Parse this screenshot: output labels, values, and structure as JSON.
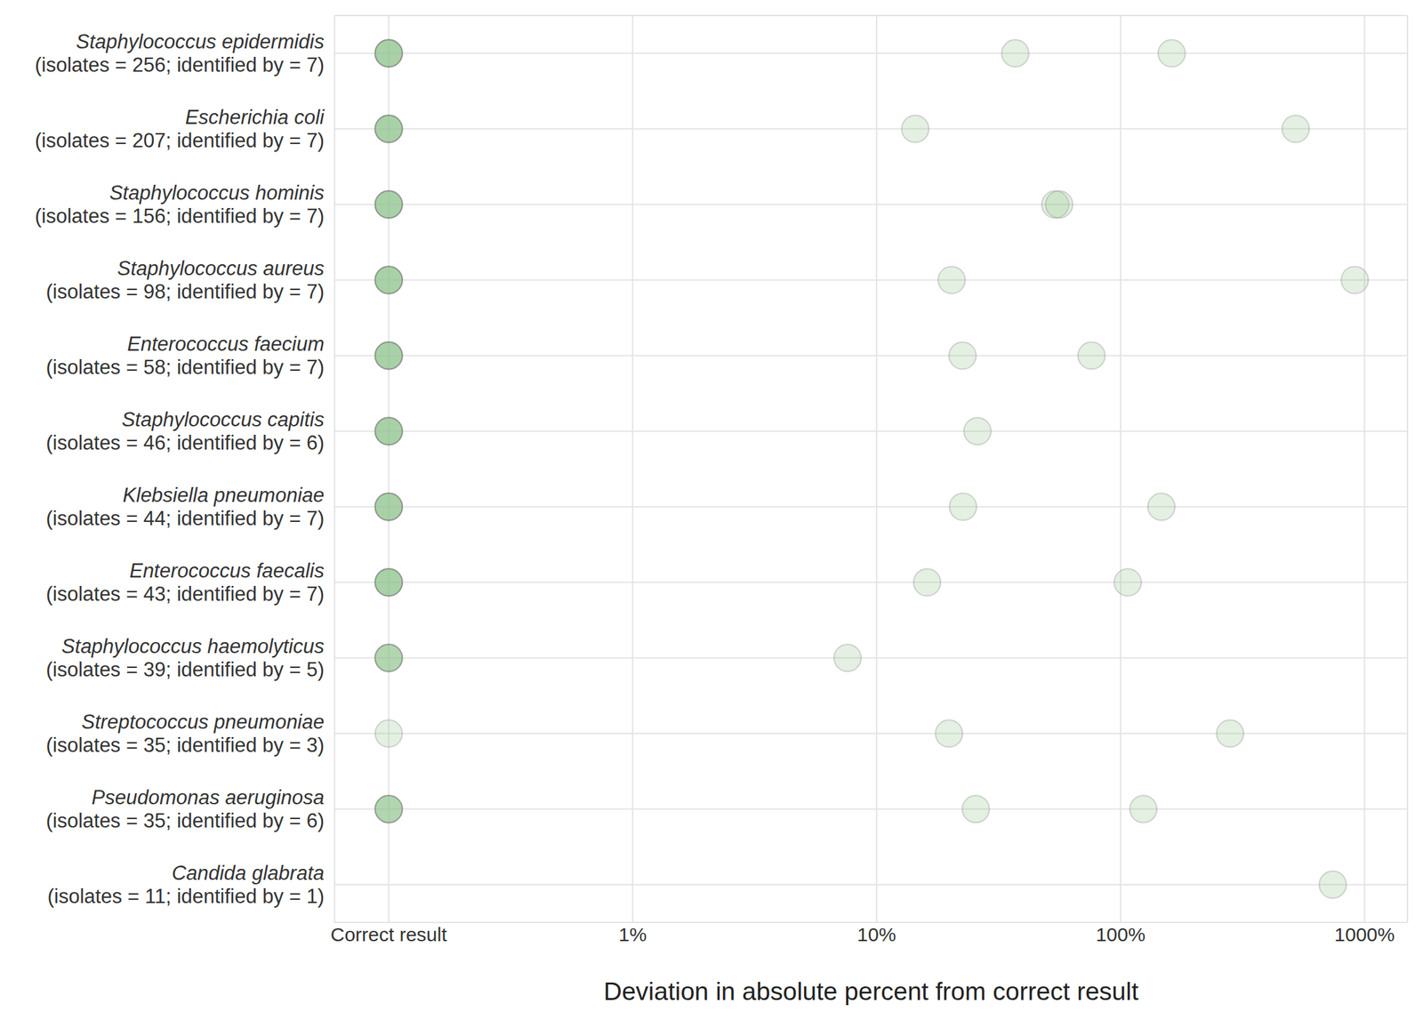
{
  "chart_data": {
    "type": "scatter",
    "x_label": "Deviation in absolute percent from correct result",
    "categories": [
      "Staphylococcus epidermidis",
      "Escherichia coli",
      "Staphylococcus hominis",
      "Staphylococcus aureus",
      "Enterococcus faecium",
      "Staphylococcus capitis",
      "Klebsiella pneumoniae",
      "Enterococcus faecalis",
      "Staphylococcus haemolyticus",
      "Streptococcus pneumoniae",
      "Pseudomonas aeruginosa",
      "Candida glabrata"
    ],
    "category_details": [
      "(isolates = 256; identified by = 7)",
      "(isolates = 207; identified by = 7)",
      "(isolates = 156; identified by = 7)",
      "(isolates = 98; identified by = 7)",
      "(isolates = 58; identified by = 7)",
      "(isolates = 46; identified by = 6)",
      "(isolates = 44; identified by = 7)",
      "(isolates = 43; identified by = 7)",
      "(isolates = 39; identified by = 5)",
      "(isolates = 35; identified by = 3)",
      "(isolates = 35; identified by = 6)",
      "(isolates = 11; identified by = 1)"
    ],
    "values": [
      [
        0.1,
        0.1,
        0.1,
        0.1,
        0.1,
        37,
        162
      ],
      [
        0.1,
        0.1,
        0.1,
        0.1,
        0.1,
        14.4,
        522
      ],
      [
        0.1,
        0.1,
        0.1,
        0.1,
        0.1,
        54,
        56
      ],
      [
        0.1,
        0.1,
        0.1,
        0.1,
        0.1,
        20.3,
        912
      ],
      [
        0.1,
        0.1,
        0.1,
        0.1,
        0.1,
        22.5,
        76
      ],
      [
        0.1,
        0.1,
        0.1,
        0.1,
        0.1,
        25.9
      ],
      [
        0.1,
        0.1,
        0.1,
        0.1,
        0.1,
        22.6,
        147
      ],
      [
        0.1,
        0.1,
        0.1,
        0.1,
        0.1,
        16.1,
        107
      ],
      [
        0.1,
        0.1,
        0.1,
        0.1,
        7.6
      ],
      [
        0.1,
        19.8,
        281
      ],
      [
        0.1,
        0.1,
        0.1,
        0.1,
        25.5,
        124
      ],
      [
        741
      ]
    ],
    "color": "#8fc28a",
    "log": "x",
    "xlim": [
      0.06,
      1500
    ],
    "xticks": [
      {
        "value": 0.1,
        "label": "Correct result"
      },
      {
        "value": 1,
        "label": "1%"
      },
      {
        "value": 10,
        "label": "10%"
      },
      {
        "value": 100,
        "label": "100%"
      },
      {
        "value": 1000,
        "label": "1000%"
      }
    ],
    "grid": true
  }
}
